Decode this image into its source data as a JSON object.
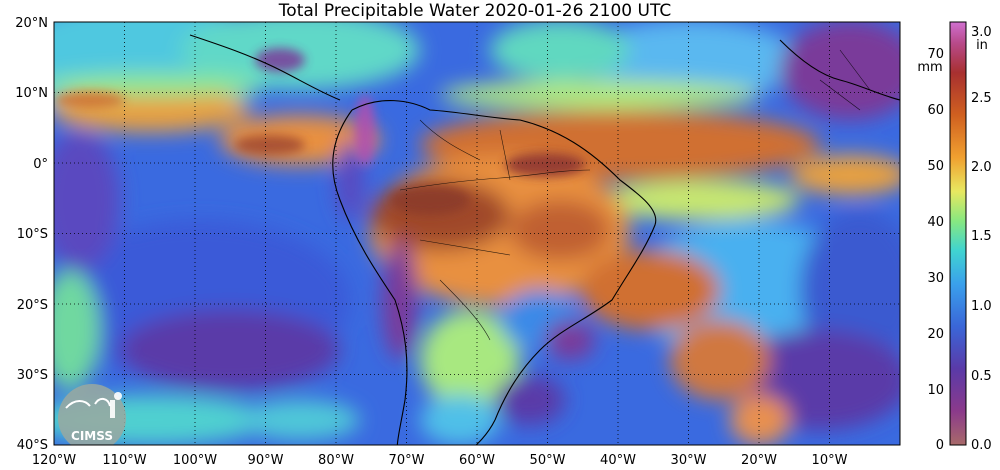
{
  "title": "Total Precipitable Water  2020-01-26 2100 UTC",
  "logo_text": "CIMSS",
  "lat_labels": [
    "20°N",
    "10°N",
    "0°",
    "10°S",
    "20°S",
    "30°S",
    "40°S"
  ],
  "lon_labels": [
    "120°W",
    "110°W",
    "100°W",
    "90°W",
    "80°W",
    "70°W",
    "60°W",
    "50°W",
    "40°W",
    "30°W",
    "20°W",
    "10°W"
  ],
  "colorbar": {
    "mm_unit": "mm",
    "in_unit": "in",
    "mm_ticks": [
      "0",
      "10",
      "20",
      "30",
      "40",
      "50",
      "60",
      "70"
    ],
    "in_ticks": [
      "0.0",
      "0.5",
      "1.0",
      "1.5",
      "2.0",
      "2.5",
      "3.0"
    ],
    "colors": [
      "#a05a5a",
      "#8b3a8b",
      "#5a3aa0",
      "#3a5ad0",
      "#3a9ae8",
      "#40d0d0",
      "#7ae890",
      "#e8e860",
      "#f0a030",
      "#d06020",
      "#a03030",
      "#c060c0"
    ]
  },
  "palette": {
    "ocean_dry": "#7a3a9a",
    "ocean_blue": "#3a6ae0",
    "ocean_light": "#4ab0f0",
    "cyan": "#50d8d0",
    "green": "#88e888",
    "yellow": "#e8e860",
    "orange": "#f0a040",
    "dark_orange": "#d07030",
    "brown": "#a04a2a",
    "magenta": "#b050b0"
  }
}
